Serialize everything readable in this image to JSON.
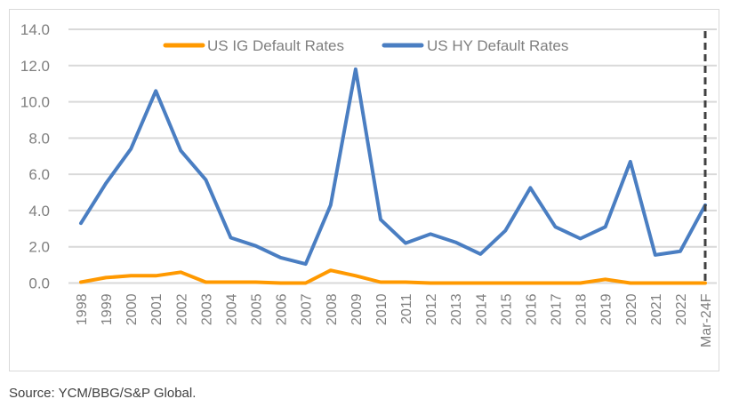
{
  "chart_data": {
    "type": "line",
    "title": "",
    "xlabel": "",
    "ylabel": "",
    "ylim": [
      0,
      14
    ],
    "yticks": [
      "0.0",
      "2.0",
      "4.0",
      "6.0",
      "8.0",
      "10.0",
      "12.0",
      "14.0"
    ],
    "grid": true,
    "legend_position": "top-center",
    "categories": [
      "1998",
      "1999",
      "2000",
      "2001",
      "2002",
      "2003",
      "2004",
      "2005",
      "2006",
      "2007",
      "2008",
      "2009",
      "2010",
      "2011",
      "2012",
      "2013",
      "2014",
      "2015",
      "2016",
      "2017",
      "2018",
      "2019",
      "2020",
      "2021",
      "2022",
      "Mar-24F"
    ],
    "series": [
      {
        "name": "US IG Default Rates",
        "color": "#FF9900",
        "values": [
          0.05,
          0.3,
          0.4,
          0.4,
          0.6,
          0.05,
          0.05,
          0.05,
          0.0,
          0.0,
          0.7,
          0.4,
          0.05,
          0.05,
          0.0,
          0.0,
          0.0,
          0.0,
          0.0,
          0.0,
          0.0,
          0.2,
          0.0,
          0.0,
          0.0,
          0.0
        ]
      },
      {
        "name": "US HY Default Rates",
        "color": "#4A7EC2",
        "values": [
          3.3,
          5.5,
          7.4,
          10.6,
          7.3,
          5.7,
          2.5,
          2.05,
          1.4,
          1.05,
          4.3,
          11.8,
          3.5,
          2.2,
          2.7,
          2.25,
          1.6,
          2.9,
          5.25,
          3.1,
          2.45,
          3.1,
          6.7,
          1.55,
          1.75,
          4.3
        ]
      }
    ],
    "annotations": [
      {
        "type": "vertical-dashed-line",
        "at_category": "Mar-24F",
        "color": "#404040"
      }
    ]
  },
  "footer": {
    "source": "Source: YCM/BBG/S&P Global."
  }
}
